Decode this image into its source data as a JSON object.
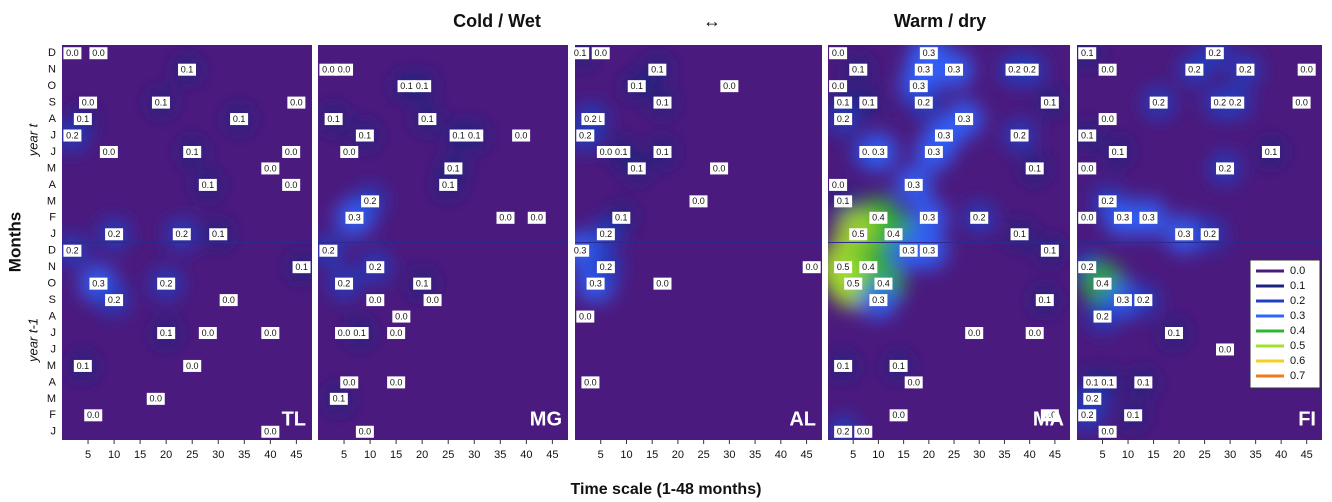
{
  "figure": {
    "title_left": "Cold / Wet",
    "arrow": "↔",
    "title_right": "Warm / dry",
    "ylabel": "Months",
    "xlabel": "Time scale (1-48 months)",
    "year_labels": [
      "year t",
      "year t-1"
    ]
  },
  "chart_data": [
    {
      "type": "heatmap",
      "title": "TL",
      "xlim": [
        0,
        48
      ],
      "ylim": [
        0.5,
        24.5
      ],
      "xticks": [
        5,
        10,
        15,
        20,
        25,
        30,
        35,
        40,
        45
      ],
      "months": [
        "J",
        "F",
        "M",
        "A",
        "M",
        "J",
        "J",
        "A",
        "S",
        "O",
        "N",
        "D",
        "J",
        "F",
        "M",
        "A",
        "M",
        "J",
        "J",
        "A",
        "S",
        "O",
        "N",
        "D"
      ],
      "points": {
        "x": [
          2,
          7,
          24,
          5,
          19,
          34,
          45,
          4,
          2,
          9,
          25,
          40,
          44,
          28,
          44,
          10,
          23,
          30,
          2,
          7,
          10,
          20,
          32,
          46,
          20,
          28,
          40,
          4,
          25,
          18,
          6,
          40
        ],
        "y": [
          24,
          24,
          23,
          21,
          21,
          20,
          21,
          20,
          19,
          18,
          18,
          17,
          18,
          16,
          16,
          13,
          13,
          13,
          12,
          10,
          9,
          10,
          9,
          11,
          7,
          7,
          7,
          5,
          5,
          3,
          2,
          1
        ],
        "values": [
          0,
          0,
          0.1,
          0,
          0.1,
          0.1,
          0,
          0.1,
          0.2,
          0,
          0.1,
          0,
          0,
          0.1,
          0,
          0.2,
          0.2,
          0.1,
          0.2,
          0.3,
          0.2,
          0.2,
          0,
          0.1,
          0.1,
          0,
          0,
          0.1,
          0,
          0,
          0,
          0
        ],
        "value_labels": [
          "0.0",
          "0.0",
          "0.1",
          "0.0",
          "0.1",
          "0.1",
          "0.0",
          "0.1",
          "0.2",
          "0.0",
          "0.1",
          "0.0",
          "0.0",
          "0.1",
          "0.0",
          "0.2",
          "0.2",
          "0.1",
          "0.2",
          "0.3",
          "0.2",
          "0.2",
          "0.0",
          "0.1",
          "0.1",
          "0.0",
          "0.0",
          "0.1",
          "0.0",
          "0.0",
          "0.0",
          "0.0"
        ]
      }
    },
    {
      "type": "heatmap",
      "title": "MG",
      "xlim": [
        0,
        48
      ],
      "ylim": [
        0.5,
        24.5
      ],
      "xticks": [
        5,
        10,
        15,
        20,
        25,
        30,
        35,
        40,
        45
      ],
      "points": {
        "x": [
          2,
          5,
          17,
          20,
          3,
          21,
          27,
          30,
          6,
          9,
          39,
          26,
          25,
          10,
          7,
          36,
          42,
          2,
          11,
          5,
          20,
          22,
          11,
          16,
          5,
          8,
          15,
          6,
          4,
          15,
          9
        ],
        "y": [
          23,
          23,
          22,
          22,
          20,
          20,
          19,
          19,
          18,
          19,
          19,
          17,
          16,
          15,
          14,
          14,
          14,
          12,
          11,
          10,
          10,
          9,
          9,
          8,
          7,
          7,
          7,
          4,
          3,
          4,
          1
        ],
        "values": [
          0,
          0,
          0.1,
          0.1,
          0.1,
          0.1,
          0.1,
          0.1,
          0,
          0.1,
          0,
          0.1,
          0.1,
          0.2,
          0.3,
          0,
          0,
          0.2,
          0.2,
          0.2,
          0.1,
          0,
          0,
          0,
          0,
          0.1,
          0,
          0,
          0.1,
          0,
          0
        ],
        "value_labels": [
          "0.0",
          "0.0",
          "0.1",
          "0.1",
          "0.1",
          "0.1",
          "0.1",
          "0.1",
          "0.0",
          "0.1",
          "0.0",
          "0.1",
          "0.1",
          "0.2",
          "0.3",
          "0.0",
          "0.0",
          "0.2",
          "0.2",
          "0.2",
          "0.1",
          "0.0",
          "0.0",
          "0.0",
          "0.0",
          "0.1",
          "0.0",
          "0.0",
          "0.1",
          "0.0",
          "0.0"
        ]
      }
    },
    {
      "type": "heatmap",
      "title": "AL",
      "xlim": [
        0,
        48
      ],
      "ylim": [
        0.5,
        24.5
      ],
      "xticks": [
        5,
        10,
        15,
        20,
        25,
        30,
        35,
        40,
        45
      ],
      "points": {
        "x": [
          1,
          5,
          16,
          30,
          12,
          4,
          3,
          17,
          2,
          6,
          9,
          17,
          12,
          28,
          24,
          9,
          6,
          1,
          4,
          6,
          17,
          2,
          3,
          46
        ],
        "y": [
          24,
          24,
          23,
          22,
          22,
          20,
          20,
          21,
          19,
          18,
          18,
          18,
          17,
          17,
          15,
          14,
          13,
          12,
          10,
          11,
          10,
          8,
          4,
          11
        ],
        "values": [
          0.1,
          0,
          0.1,
          0,
          0.1,
          0.1,
          0.2,
          0.1,
          0.2,
          0,
          0.1,
          0.1,
          0.1,
          0,
          0,
          0.1,
          0.2,
          0.3,
          0.3,
          0.2,
          0,
          0,
          0,
          0
        ],
        "value_labels": [
          "0.1",
          "0.0",
          "0.1",
          "0.0",
          "0.1",
          "0.1",
          "0.2",
          "0.1",
          "0.2",
          "0.0",
          "0.1",
          "0.1",
          "0.1",
          "0.0",
          "0.0",
          "0.1",
          "0.2",
          "0.3",
          "0.3",
          "0.2",
          "0.0",
          "0.0",
          "0.0",
          "0.0"
        ]
      }
    },
    {
      "type": "heatmap",
      "title": "MA",
      "xlim": [
        0,
        48
      ],
      "ylim": [
        0.5,
        24.5
      ],
      "xticks": [
        5,
        10,
        15,
        20,
        25,
        30,
        35,
        40,
        45
      ],
      "points": {
        "x": [
          2,
          6,
          20,
          19,
          25,
          37,
          40,
          2,
          3,
          8,
          18,
          19,
          3,
          27,
          38,
          44,
          23,
          8,
          10,
          21,
          41,
          2,
          17,
          3,
          10,
          6,
          20,
          30,
          13,
          38,
          20,
          3,
          8,
          16,
          5,
          11,
          10,
          44,
          43,
          29,
          41,
          14,
          3,
          17,
          14,
          3,
          7,
          44
        ],
        "y": [
          24,
          23,
          24,
          23,
          23,
          23,
          23,
          22,
          21,
          21,
          22,
          21,
          20,
          20,
          19,
          21,
          19,
          18,
          18,
          18,
          17,
          16,
          16,
          15,
          14,
          13,
          14,
          14,
          13,
          13,
          12,
          11,
          11,
          12,
          10,
          10,
          9,
          12,
          9,
          7,
          7,
          5,
          5,
          4,
          2,
          1,
          1,
          2
        ],
        "values": [
          0,
          0.1,
          0.3,
          0.3,
          0.3,
          0.2,
          0.2,
          0,
          0.1,
          0.1,
          0.3,
          0.2,
          0.2,
          0.3,
          0.2,
          0.1,
          0.3,
          0.2,
          0.3,
          0.3,
          0.1,
          0,
          0.3,
          0.1,
          0.4,
          0.5,
          0.3,
          0.2,
          0.4,
          0.1,
          0.3,
          0.5,
          0.4,
          0.3,
          0.5,
          0.4,
          0.3,
          0.1,
          0.1,
          0,
          0,
          0.1,
          0.1,
          0,
          0,
          0.2,
          0,
          0
        ],
        "value_labels": [
          "0.0",
          "0.1",
          "0.3",
          "0.3",
          "0.3",
          "0.2",
          "0.2",
          "0.0",
          "0.1",
          "0.1",
          "0.3",
          "0.2",
          "0.2",
          "0.3",
          "0.2",
          "0.1",
          "0.3",
          "0.2",
          "0.3",
          "0.3",
          "0.1",
          "0.0",
          "0.3",
          "0.1",
          "0.4",
          "0.5",
          "0.3",
          "0.2",
          "0.4",
          "0.1",
          "0.3",
          "0.5",
          "0.4",
          "0.3",
          "0.5",
          "0.4",
          "0.3",
          "0.1",
          "0.1",
          "0.0",
          "0.0",
          "0.1",
          "0.1",
          "0.0",
          "0.0",
          "0.2",
          "0.0",
          "0.0"
        ]
      }
    },
    {
      "type": "heatmap",
      "title": "FI",
      "xlim": [
        0,
        48
      ],
      "ylim": [
        0.5,
        24.5
      ],
      "xticks": [
        5,
        10,
        15,
        20,
        25,
        30,
        35,
        40,
        45
      ],
      "points": {
        "x": [
          2,
          6,
          23,
          27,
          33,
          45,
          16,
          28,
          31,
          44,
          6,
          2,
          8,
          2,
          29,
          38,
          6,
          2,
          9,
          14,
          21,
          26,
          2,
          5,
          9,
          13,
          5,
          19,
          29,
          3,
          6,
          13,
          3,
          11,
          2,
          6
        ],
        "y": [
          24,
          23,
          23,
          24,
          23,
          23,
          21,
          21,
          21,
          21,
          20,
          19,
          18,
          17,
          17,
          18,
          15,
          14,
          14,
          14,
          13,
          13,
          11,
          10,
          9,
          9,
          8,
          7,
          6,
          4,
          4,
          4,
          3,
          2,
          2,
          1
        ],
        "values": [
          0.1,
          0,
          0.2,
          0.2,
          0.2,
          0,
          0.2,
          0.2,
          0.2,
          0,
          0,
          0.1,
          0.1,
          0,
          0.2,
          0.1,
          0.2,
          0,
          0.3,
          0.3,
          0.3,
          0.2,
          0.2,
          0.4,
          0.3,
          0.2,
          0.2,
          0.1,
          0,
          0.1,
          0.1,
          0.1,
          0.2,
          0.1,
          0.2,
          0
        ],
        "value_labels": [
          "0.1",
          "0.0",
          "0.2",
          "0.2",
          "0.2",
          "0.0",
          "0.2",
          "0.2",
          "0.2",
          "0.0",
          "0.0",
          "0.1",
          "0.1",
          "0.0",
          "0.2",
          "0.1",
          "0.2",
          "0.0",
          "0.3",
          "0.3",
          "0.3",
          "0.2",
          "0.2",
          "0.4",
          "0.3",
          "0.2",
          "0.2",
          "0.1",
          "0.0",
          "0.1",
          "0.1",
          "0.1",
          "0.2",
          "0.1",
          "0.2",
          "0.0"
        ]
      },
      "colorbar": {
        "ticks": [
          {
            "value": 0,
            "label": "0.0"
          },
          {
            "value": 0.1,
            "label": "0.1"
          },
          {
            "value": 0.2,
            "label": "0.2"
          },
          {
            "value": 0.3,
            "label": "0.3"
          },
          {
            "value": 0.4,
            "label": "0.4"
          },
          {
            "value": 0.5,
            "label": "0.5"
          },
          {
            "value": 0.6,
            "label": "0.6"
          },
          {
            "value": 0.7,
            "label": "0.7"
          }
        ],
        "colors": [
          "#4b1a7e",
          "#1a237e",
          "#1f3fc4",
          "#2f64ff",
          "#2fb52f",
          "#a4e22a",
          "#f5cf22",
          "#ef7a1c"
        ]
      }
    }
  ]
}
